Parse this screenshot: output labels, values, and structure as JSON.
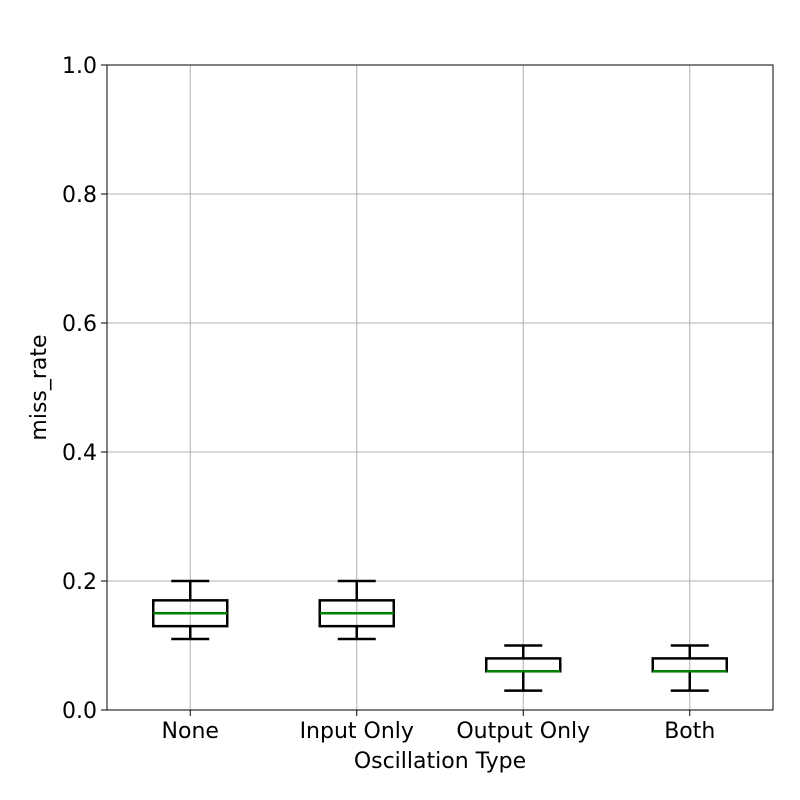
{
  "chart_data": {
    "type": "box",
    "title": "",
    "xlabel": "Oscillation Type",
    "ylabel": "miss_rate",
    "ylim": [
      0.0,
      1.0
    ],
    "yticks": [
      0.0,
      0.2,
      0.4,
      0.6,
      0.8,
      1.0
    ],
    "ytick_labels": [
      "0.0",
      "0.2",
      "0.4",
      "0.6",
      "0.8",
      "1.0"
    ],
    "categories": [
      "None",
      "Input Only",
      "Output Only",
      "Both"
    ],
    "boxes": [
      {
        "category": "None",
        "whisker_low": 0.11,
        "q1": 0.13,
        "median": 0.15,
        "q3": 0.17,
        "whisker_high": 0.2
      },
      {
        "category": "Input Only",
        "whisker_low": 0.11,
        "q1": 0.13,
        "median": 0.15,
        "q3": 0.17,
        "whisker_high": 0.2
      },
      {
        "category": "Output Only",
        "whisker_low": 0.03,
        "q1": 0.06,
        "median": 0.06,
        "q3": 0.08,
        "whisker_high": 0.1
      },
      {
        "category": "Both",
        "whisker_low": 0.03,
        "q1": 0.06,
        "median": 0.06,
        "q3": 0.08,
        "whisker_high": 0.1
      }
    ],
    "grid": true,
    "colors": {
      "box": "#000000",
      "median": "#008000",
      "grid": "#b0b0b0",
      "axes": "#000000"
    }
  }
}
